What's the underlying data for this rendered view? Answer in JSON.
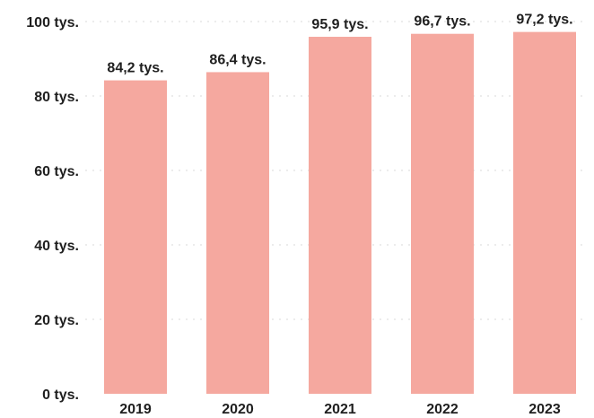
{
  "chart_data": {
    "type": "bar",
    "categories": [
      "2019",
      "2020",
      "2021",
      "2022",
      "2023"
    ],
    "values": [
      84.2,
      86.4,
      95.9,
      96.7,
      97.2
    ],
    "data_labels": [
      "84,2 tys.",
      "86,4 tys.",
      "95,9 tys.",
      "96,7 tys.",
      "97,2 tys."
    ],
    "yticks": [
      0,
      20,
      40,
      60,
      80,
      100
    ],
    "ytick_labels": [
      "0 tys.",
      "20 tys.",
      "40 tys.",
      "60 tys.",
      "80 tys.",
      "100 tys."
    ],
    "ylim": [
      0,
      100
    ],
    "title": "",
    "xlabel": "",
    "ylabel": "",
    "grid": true,
    "legend": "none",
    "bar_color": "#f5a89f"
  }
}
